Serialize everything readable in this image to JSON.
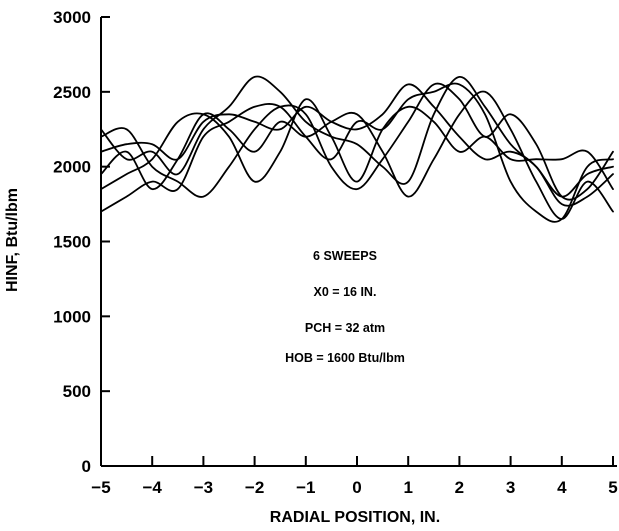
{
  "chart_data": {
    "type": "line",
    "xlabel": "RADIAL POSITION, IN.",
    "ylabel": "HINF, Btu/lbm",
    "xlim": [
      -5,
      5
    ],
    "ylim": [
      0,
      3000
    ],
    "xticks": [
      "-5",
      "-4",
      "-3",
      "-2",
      "-1",
      "0",
      "1",
      "2",
      "3",
      "4",
      "5"
    ],
    "yticks": [
      "0",
      "500",
      "1000",
      "1500",
      "2000",
      "2500",
      "3000"
    ],
    "annotations": [
      "6 SWEEPS",
      "X0 = 16 IN.",
      "PCH = 32 atm",
      "HOB = 1600 Btu/lbm"
    ],
    "grid": false,
    "x": [
      -5.0,
      -4.5,
      -4.0,
      -3.5,
      -3.0,
      -2.5,
      -2.0,
      -1.5,
      -1.0,
      -0.5,
      0.0,
      0.5,
      1.0,
      1.5,
      2.0,
      2.5,
      3.0,
      3.5,
      4.0,
      4.5,
      5.0
    ],
    "series": [
      {
        "values": [
          2250,
          2050,
          2100,
          1950,
          2250,
          2400,
          2600,
          2500,
          2300,
          2200,
          2150,
          2000,
          1900,
          2350,
          2600,
          2400,
          2150,
          2000,
          1800,
          1950,
          2000
        ]
      },
      {
        "values": [
          2100,
          2150,
          2150,
          2050,
          2300,
          2350,
          2300,
          2250,
          2400,
          2300,
          2250,
          2350,
          2550,
          2400,
          2200,
          2050,
          2100,
          2000,
          1750,
          1800,
          1950
        ]
      },
      {
        "values": [
          2200,
          2250,
          2000,
          1900,
          1800,
          2000,
          2250,
          2400,
          2350,
          2000,
          1850,
          2050,
          2300,
          2550,
          2450,
          2200,
          2350,
          2150,
          1800,
          1850,
          2100
        ]
      },
      {
        "values": [
          1950,
          2100,
          1850,
          2050,
          2350,
          2250,
          2100,
          2300,
          2200,
          2300,
          2350,
          2100,
          1800,
          2050,
          2350,
          2500,
          2250,
          1900,
          1650,
          1900,
          1700
        ]
      },
      {
        "values": [
          1850,
          1950,
          2050,
          2300,
          2350,
          2200,
          1900,
          2100,
          2450,
          2200,
          1900,
          2250,
          2400,
          2300,
          2100,
          2200,
          2050,
          2050,
          2050,
          2100,
          1850
        ]
      },
      {
        "values": [
          1700,
          1800,
          1900,
          1850,
          2200,
          2300,
          2400,
          2400,
          2200,
          2050,
          2300,
          2250,
          2450,
          2500,
          2550,
          2350,
          1900,
          1700,
          1650,
          2000,
          2050
        ]
      }
    ]
  }
}
